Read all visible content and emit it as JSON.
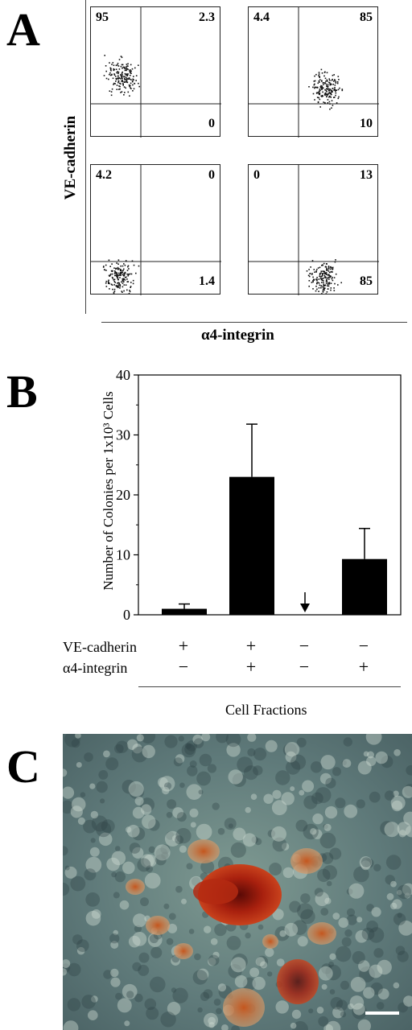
{
  "panels": {
    "a": {
      "letter": "A",
      "y_label": "VE-cadherin",
      "x_label": "α4-integrin",
      "plots": [
        {
          "ul": "95",
          "ur": "2.3",
          "lr": "0",
          "ll": ""
        },
        {
          "ul": "4.4",
          "ur": "85",
          "lr": "10",
          "ll": ""
        },
        {
          "ul": "4.2",
          "ur": "0",
          "lr": "",
          "ll": "1.4"
        },
        {
          "ul": "0",
          "ur": "13",
          "lr": "85",
          "ll": ""
        }
      ]
    },
    "b": {
      "letter": "B"
    },
    "c": {
      "letter": "C"
    }
  },
  "chart_data": {
    "type": "bar",
    "title": "",
    "ylabel": "Number of Colonies per 1x10³ Cells",
    "xlabel": "Cell Fractions",
    "ylim": [
      0,
      40
    ],
    "yticks": [
      "0",
      "10",
      "20",
      "30",
      "40"
    ],
    "categories": [
      "VE-cadherin + / α4-integrin −",
      "VE-cadherin + / α4-integrin +",
      "VE-cadherin − / α4-integrin −",
      "VE-cadherin − / α4-integrin +"
    ],
    "values": [
      1,
      23,
      0,
      9.3
    ],
    "error": [
      0.8,
      8.8,
      0,
      5.1
    ],
    "arrow_on_category": 2,
    "rows": [
      {
        "label": "VE-cadherin",
        "signs": [
          "+",
          "+",
          "−",
          "−"
        ]
      },
      {
        "label": "α4-integrin",
        "signs": [
          "−",
          "+",
          "−",
          "+"
        ]
      }
    ]
  }
}
